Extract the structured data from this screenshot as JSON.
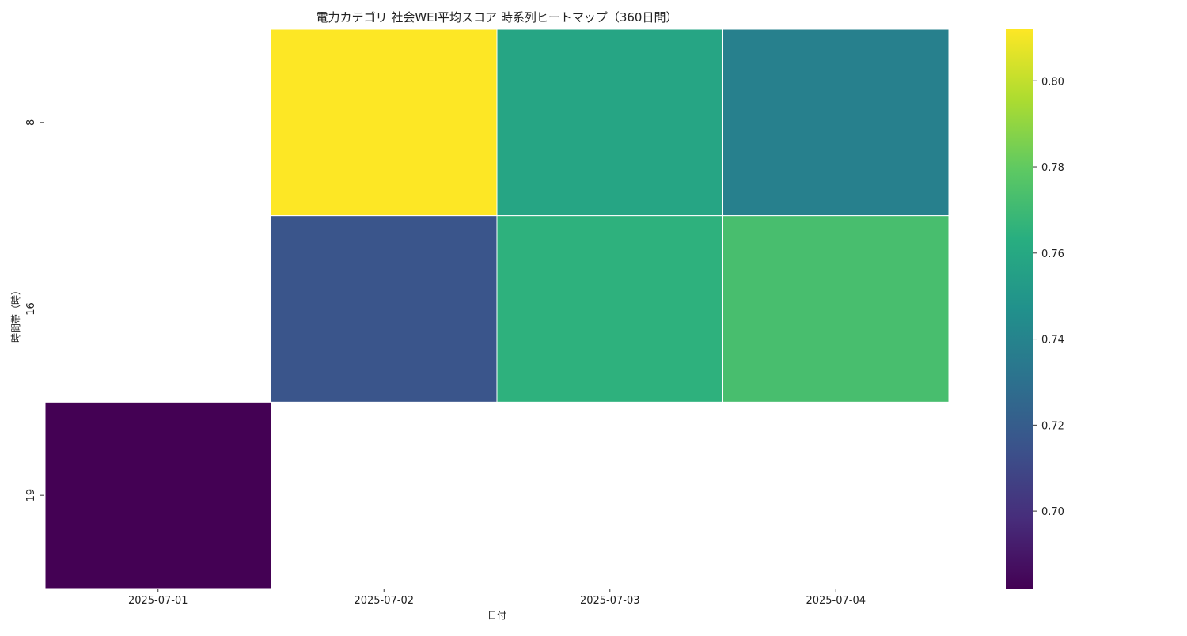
{
  "chart_data": {
    "type": "heatmap",
    "title": "電力カテゴリ 社会WEI平均スコア 時系列ヒートマップ（360日間）",
    "xlabel": "日付",
    "ylabel": "時間帯（時）",
    "x": [
      "2025-07-01",
      "2025-07-02",
      "2025-07-03",
      "2025-07-04"
    ],
    "y": [
      "8",
      "16",
      "19"
    ],
    "values": [
      [
        null,
        0.812,
        0.758,
        0.738
      ],
      [
        null,
        0.716,
        0.765,
        0.773
      ],
      [
        0.682,
        null,
        null,
        null
      ]
    ],
    "colorscale": "viridis",
    "colorbar": {
      "range": [
        0.682,
        0.812
      ],
      "ticks": [
        0.7,
        0.72,
        0.74,
        0.76,
        0.78,
        0.8
      ],
      "tick_labels": [
        "0.70",
        "0.72",
        "0.74",
        "0.76",
        "0.78",
        "0.80"
      ]
    },
    "grid": false
  }
}
